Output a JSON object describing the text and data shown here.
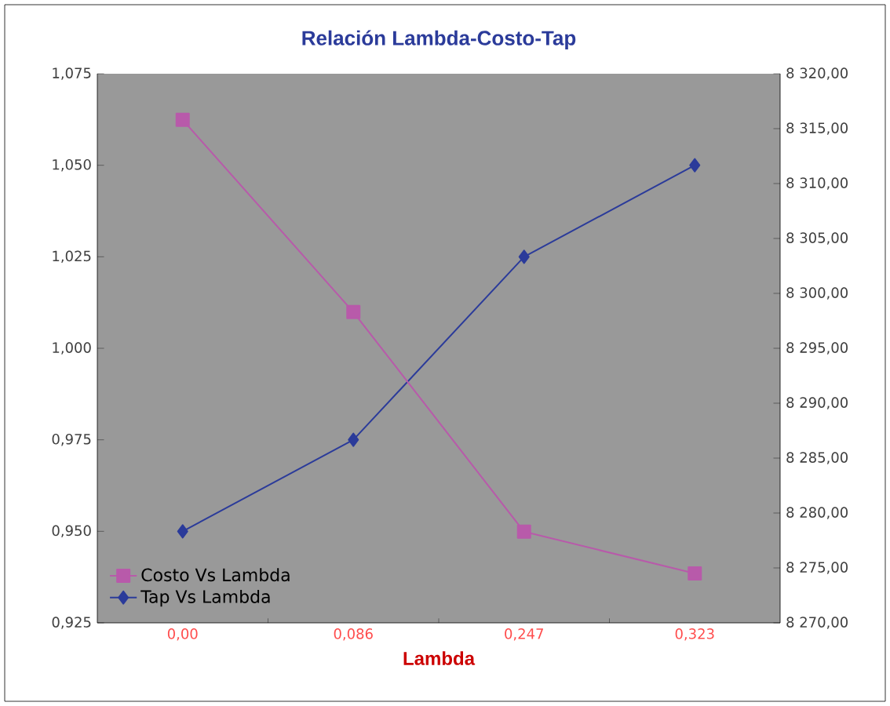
{
  "chart_data": {
    "type": "line",
    "title": "Relación Lambda-Costo-Tap",
    "xlabel": "Lambda",
    "categories": [
      "0,00",
      "0,086",
      "0,247",
      "0,323"
    ],
    "series": [
      {
        "name": "Costo Vs Lambda",
        "color": "#b85aaa",
        "marker": "square",
        "axis": "y2",
        "values": [
          8315.8,
          8298.3,
          8278.3,
          8274.5
        ]
      },
      {
        "name": "Tap Vs Lambda",
        "color": "#2b3b9a",
        "marker": "diamond",
        "values": [
          0.95,
          0.975,
          1.025,
          1.05
        ]
      }
    ],
    "ylim": [
      0.925,
      1.075
    ],
    "yticks": [
      {
        "value": 0.925,
        "label": "0,925"
      },
      {
        "value": 0.95,
        "label": "0,950"
      },
      {
        "value": 0.975,
        "label": "0,975"
      },
      {
        "value": 1.0,
        "label": "1,000"
      },
      {
        "value": 1.025,
        "label": "1,025"
      },
      {
        "value": 1.05,
        "label": "1,050"
      },
      {
        "value": 1.075,
        "label": "1,075"
      }
    ],
    "y2lim": [
      8270,
      8320
    ],
    "y2ticks": [
      {
        "value": 8270,
        "label": "8 270,00"
      },
      {
        "value": 8275,
        "label": "8 275,00"
      },
      {
        "value": 8280,
        "label": "8 280,00"
      },
      {
        "value": 8285,
        "label": "8 285,00"
      },
      {
        "value": 8290,
        "label": "8 290,00"
      },
      {
        "value": 8295,
        "label": "8 295,00"
      },
      {
        "value": 8300,
        "label": "8 300,00"
      },
      {
        "value": 8305,
        "label": "8 305,00"
      },
      {
        "value": 8310,
        "label": "8 310,00"
      },
      {
        "value": 8315,
        "label": "8 315,00"
      },
      {
        "value": 8320,
        "label": "8 320,00"
      }
    ],
    "legend": "bottom left",
    "line_style": "solid"
  }
}
